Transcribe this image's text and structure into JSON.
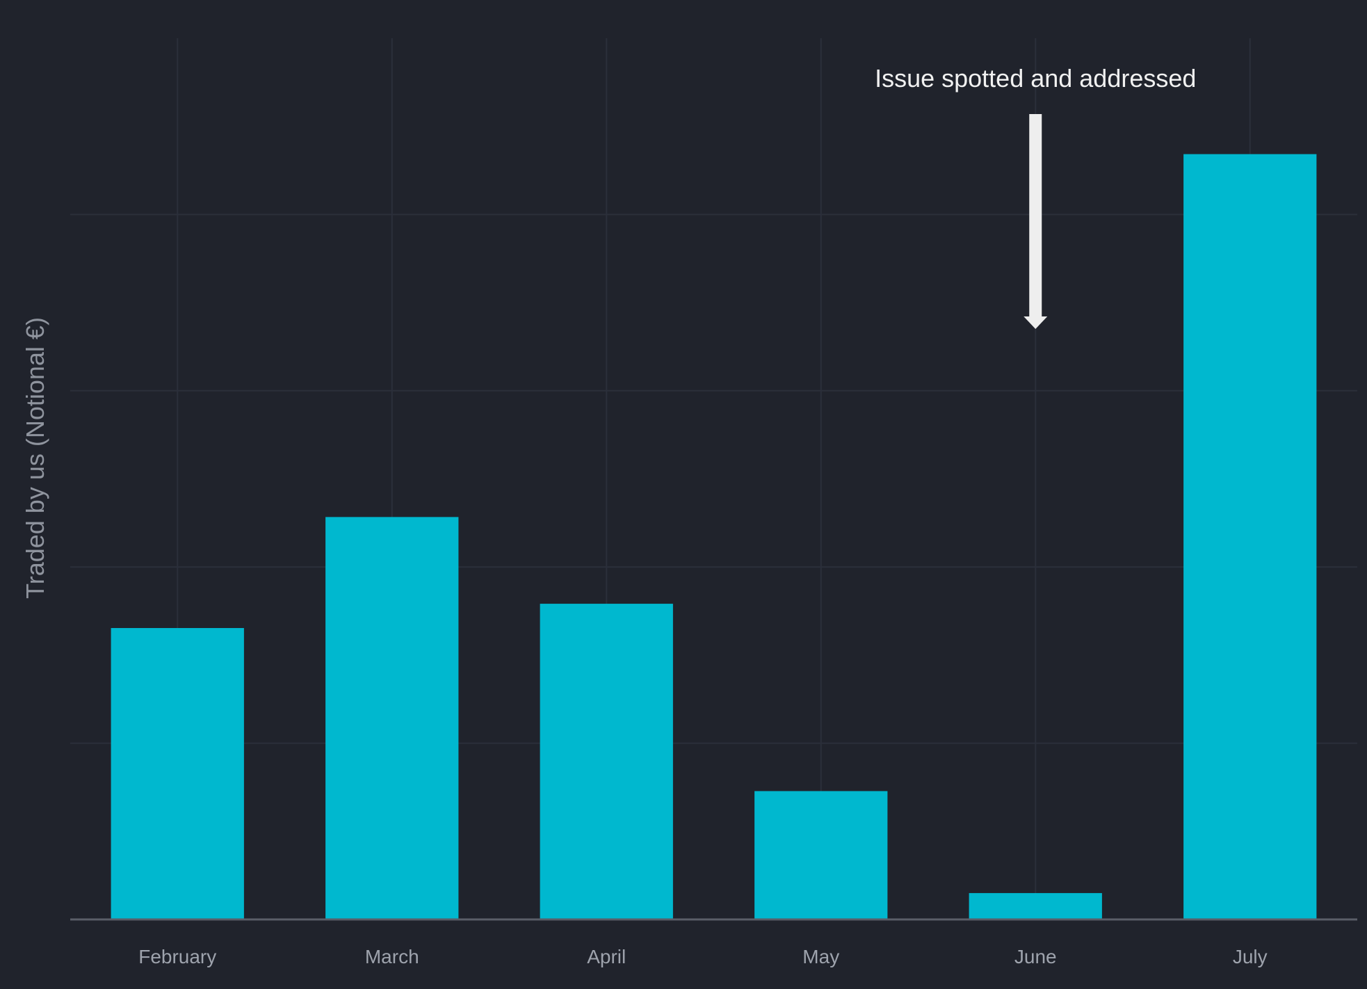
{
  "chart_data": {
    "type": "bar",
    "categories": [
      "February",
      "March",
      "April",
      "May",
      "June",
      "July"
    ],
    "values": [
      420,
      580,
      455,
      185,
      38,
      1103
    ],
    "ylabel": "Traded by us (Notional €)",
    "xlabel": "",
    "ylim": [
      0,
      1270
    ],
    "grid": true,
    "annotations": [
      {
        "text": "Issue spotted and addressed",
        "category_position": 4.5
      }
    ],
    "colors": {
      "bar": "#00b8cf",
      "background": "#20232c",
      "grid": "#2b2f3a",
      "baseline": "#5a5e68",
      "arrow": "#eeeeee"
    }
  }
}
